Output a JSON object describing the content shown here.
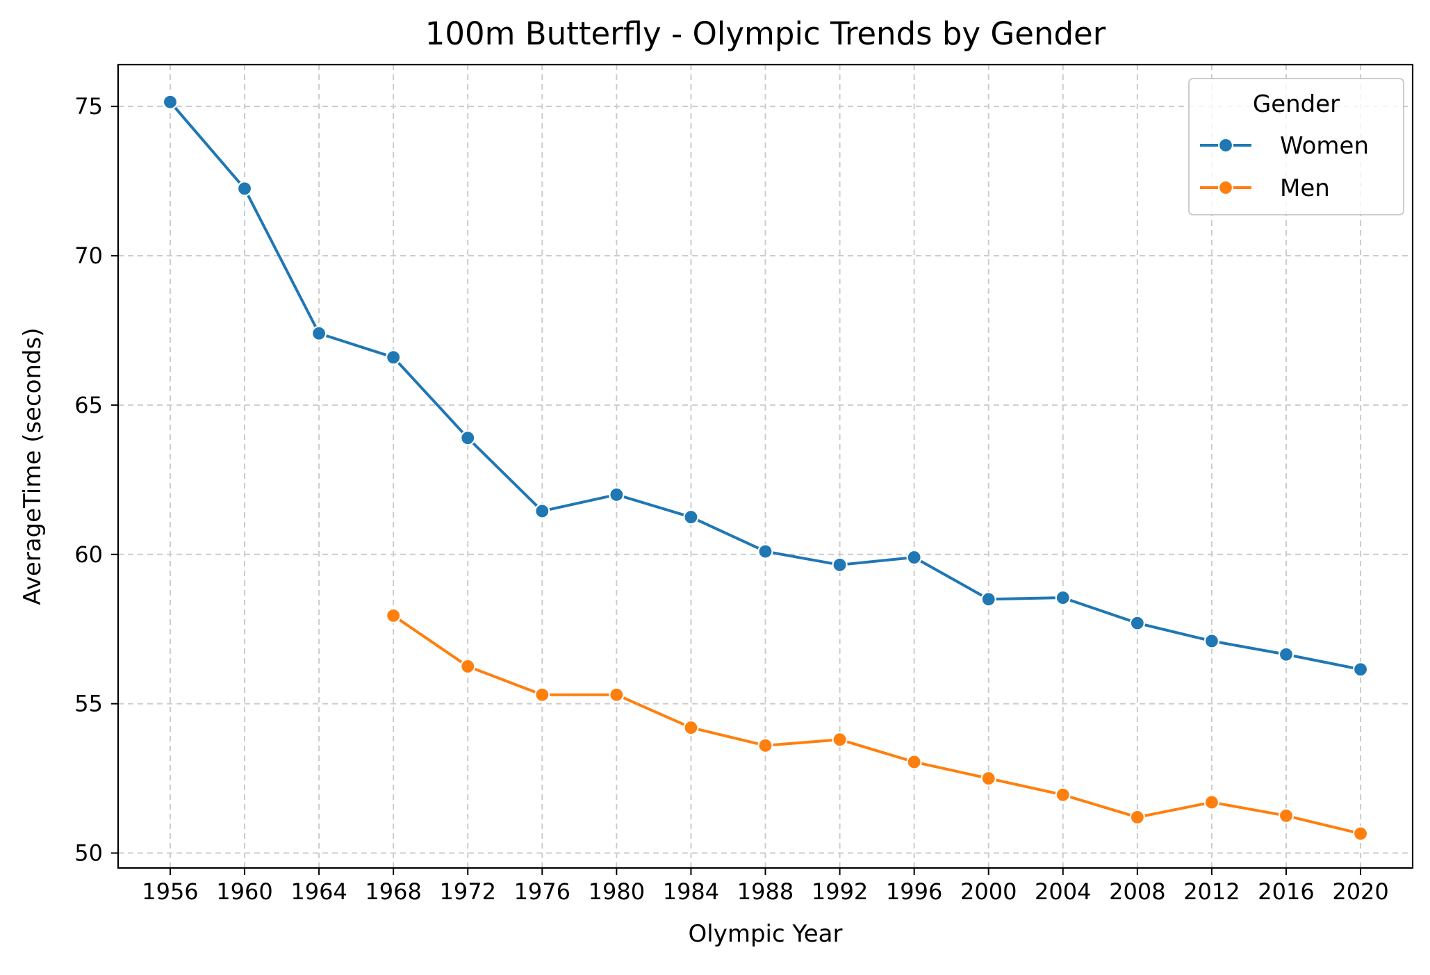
{
  "chart_data": {
    "type": "line",
    "title": "100m Butterfly - Olympic Trends by Gender",
    "xlabel": "Olympic Year",
    "ylabel": "AverageTime (seconds)",
    "x": [
      1956,
      1960,
      1964,
      1968,
      1972,
      1976,
      1980,
      1984,
      1988,
      1992,
      1996,
      2000,
      2004,
      2008,
      2012,
      2016,
      2020
    ],
    "x_tick_labels": [
      "1956",
      "1960",
      "1964",
      "1968",
      "1972",
      "1976",
      "1980",
      "1984",
      "1988",
      "1992",
      "1996",
      "2000",
      "2004",
      "2008",
      "2012",
      "2016",
      "2020"
    ],
    "ylim": [
      49.5,
      76.4
    ],
    "y_ticks": [
      50,
      55,
      60,
      65,
      70,
      75
    ],
    "y_tick_labels": [
      "50",
      "55",
      "60",
      "65",
      "70",
      "75"
    ],
    "grid": true,
    "legend": {
      "title": "Gender",
      "placement": "top-right"
    },
    "series": [
      {
        "name": "Women",
        "color": "#1f77b4",
        "values": [
          75.15,
          72.25,
          67.4,
          66.6,
          63.9,
          61.45,
          62.0,
          61.25,
          60.1,
          59.65,
          59.9,
          58.5,
          58.55,
          57.7,
          57.1,
          56.65,
          56.15
        ]
      },
      {
        "name": "Men",
        "color": "#ff7f0e",
        "values": [
          null,
          null,
          null,
          57.95,
          56.25,
          55.3,
          55.3,
          54.2,
          53.6,
          53.8,
          53.05,
          52.5,
          51.95,
          51.2,
          51.7,
          51.25,
          50.65
        ]
      }
    ]
  }
}
